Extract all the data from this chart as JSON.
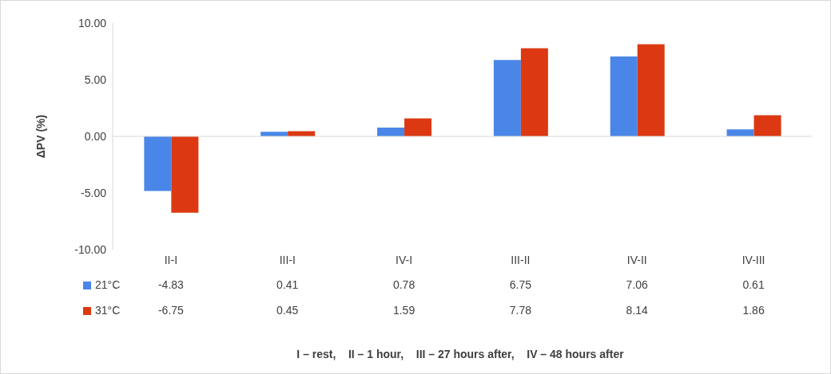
{
  "chart_data": {
    "type": "bar",
    "ylabel": "ΔPV (%)",
    "categories": [
      "II-I",
      "III-I",
      "IV-I",
      "III-II",
      "IV-II",
      "IV-III"
    ],
    "series": [
      {
        "name": "21°C",
        "color": "#4a86e8",
        "values": [
          -4.83,
          0.41,
          0.78,
          6.75,
          7.06,
          0.61
        ]
      },
      {
        "name": "31°C",
        "color": "#dc3912",
        "values": [
          -6.75,
          0.45,
          1.59,
          7.78,
          8.14,
          1.86
        ]
      }
    ],
    "ylim": [
      -10,
      10
    ],
    "yticks": [
      {
        "value": -10,
        "label": "-10.00"
      },
      {
        "value": -5,
        "label": "-5.00"
      },
      {
        "value": 0,
        "label": "0.00"
      },
      {
        "value": 5,
        "label": "5.00"
      },
      {
        "value": 10,
        "label": "10.00"
      }
    ],
    "legend": "bottom",
    "data_labels": true,
    "annotations": [
      "I – rest,    II – 1 hour,    III – 27 hours after,    IV – 48 hours after"
    ]
  }
}
